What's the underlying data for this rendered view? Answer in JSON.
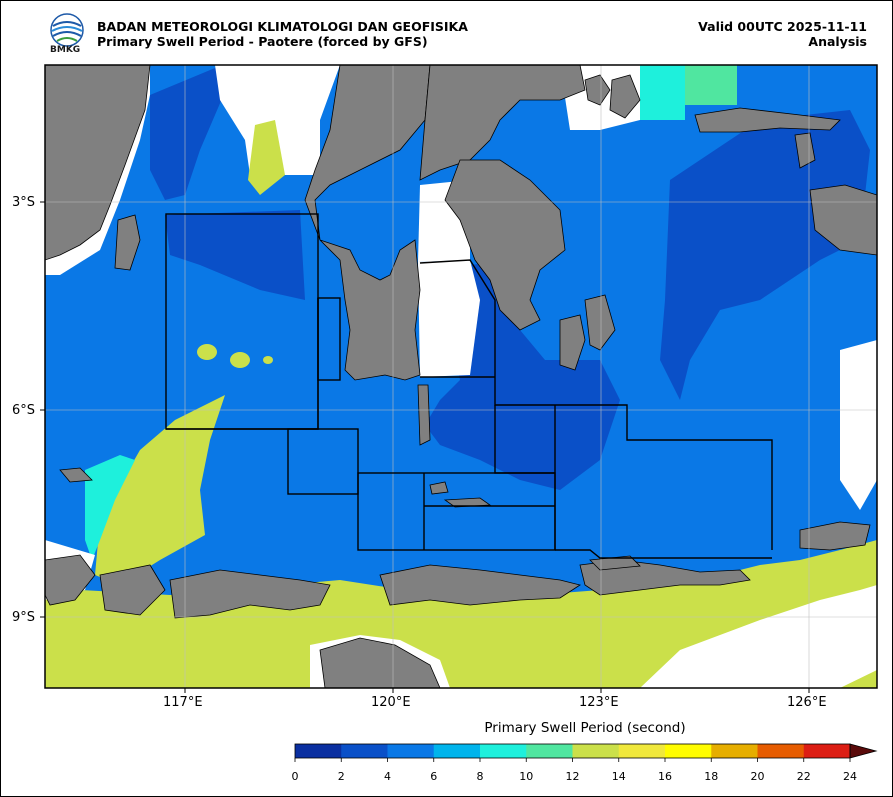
{
  "header": {
    "logo_text": "BMKG",
    "org": "BADAN METEOROLOGI KLIMATOLOGI DAN GEOFISIKA",
    "subtitle": "Primary Swell Period - Paotere (forced by GFS)",
    "valid": "Valid 00UTC 2025-11-11",
    "kind": "Analysis"
  },
  "axes": {
    "lat_ticks": [
      "3°S",
      "6°S",
      "9°S"
    ],
    "lon_ticks": [
      "117°E",
      "120°E",
      "123°E",
      "126°E"
    ]
  },
  "colorbar": {
    "label": "Primary Swell Period (second)",
    "ticks": [
      "0",
      "2",
      "4",
      "6",
      "8",
      "10",
      "12",
      "14",
      "16",
      "18",
      "20",
      "22",
      "24"
    ],
    "colors": [
      "#0a2fa0",
      "#0a50c8",
      "#0a78e6",
      "#00b4ec",
      "#1ef0dc",
      "#50e6a0",
      "#cbe04a",
      "#f0e83c",
      "#fffc00",
      "#e6ae00",
      "#e65c00",
      "#dc1e14",
      "#a01010",
      "#5a0a0a"
    ]
  },
  "map_colors": {
    "land": "#808080",
    "no_data": "#ffffff",
    "deep_blue": "#0a50c8",
    "mid_blue": "#0a78e6",
    "cyan": "#1ef0dc",
    "yellow_green": "#cbe04a",
    "teal": "#50e6a0"
  }
}
